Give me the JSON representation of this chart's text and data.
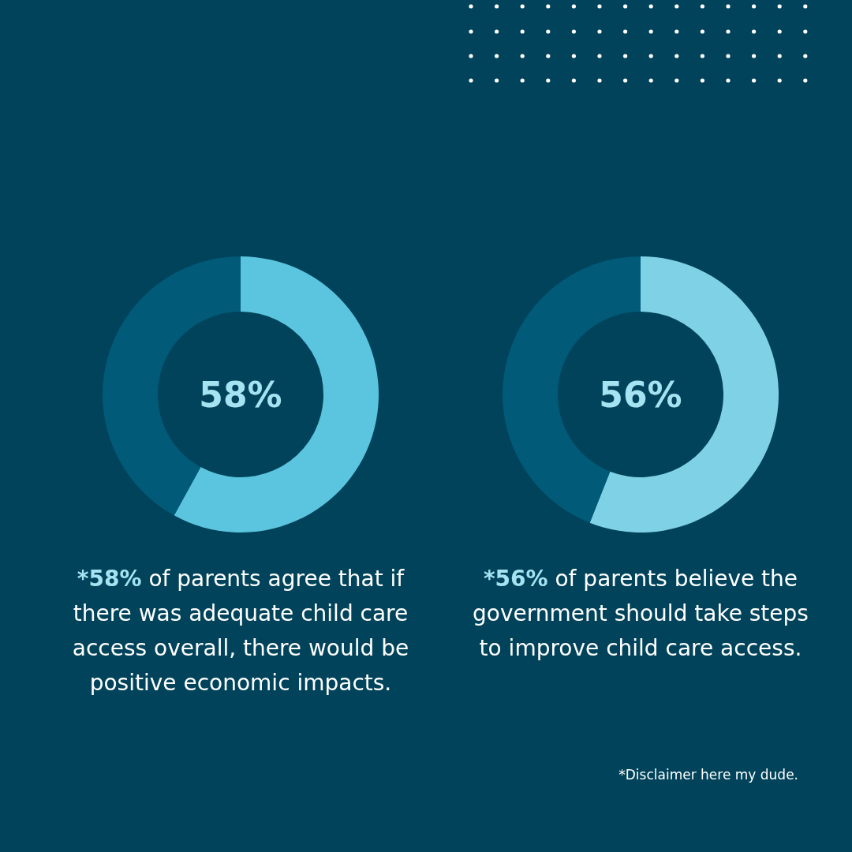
{
  "chart_data": [
    {
      "type": "donut",
      "title": "58%",
      "categories": [
        null,
        null
      ],
      "values": [
        58,
        42
      ],
      "colors": [
        "#5bc5df",
        "#005a78"
      ],
      "annotations": [
        "*58% of parents agree that if there was adequate child care access overall, there would be positive economic impacts."
      ]
    },
    {
      "type": "donut",
      "title": "56%",
      "categories": [
        null,
        null
      ],
      "values": [
        56,
        44
      ],
      "colors": [
        "#7fd2e6",
        "#005a78"
      ],
      "annotations": [
        "*56% of parents believe the government should take steps to improve child care access.",
        "*Disclaimer here my dude."
      ]
    }
  ]
}
